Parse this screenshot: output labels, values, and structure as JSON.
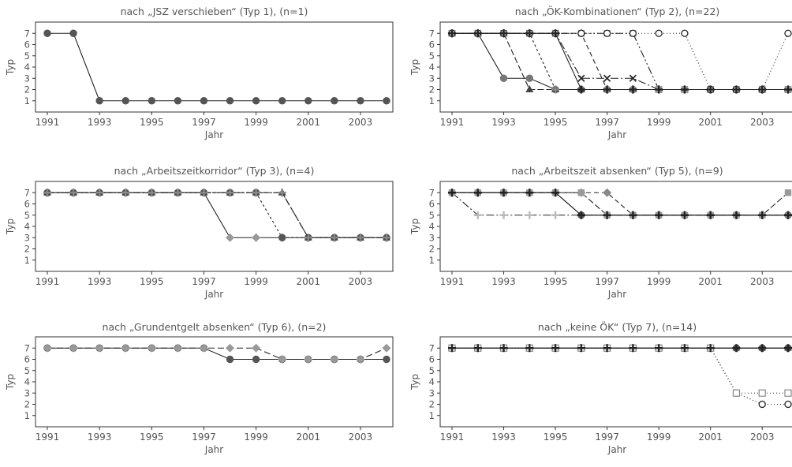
{
  "chart_data": [
    {
      "type": "line",
      "title": "nach „JSZ verschieben“ (Typ 1), (n=1)",
      "xlabel": "Jahr",
      "ylabel": "Typ",
      "x": [
        1991,
        1992,
        1993,
        1994,
        1995,
        1996,
        1997,
        1998,
        1999,
        2000,
        2001,
        2002,
        2003,
        2004
      ],
      "xticks": [
        "1991",
        "1993",
        "1995",
        "1997",
        "1999",
        "2001",
        "2003"
      ],
      "yticks": [
        "1",
        "2",
        "3",
        "4",
        "5",
        "6",
        "7"
      ],
      "ylim": [
        0,
        8
      ],
      "grid": false,
      "series": [
        {
          "marker": "circle",
          "color": "#555555",
          "dash": "",
          "values": [
            7,
            7,
            1,
            1,
            1,
            1,
            1,
            1,
            1,
            1,
            1,
            1,
            1,
            1
          ]
        }
      ]
    },
    {
      "type": "line",
      "title": "nach „ÖK-Kombinationen“ (Typ 2), (n=22)",
      "xlabel": "Jahr",
      "ylabel": "Typ",
      "x": [
        1991,
        1992,
        1993,
        1994,
        1995,
        1996,
        1997,
        1998,
        1999,
        2000,
        2001,
        2002,
        2003,
        2004
      ],
      "xticks": [
        "1991",
        "1993",
        "1995",
        "1997",
        "1999",
        "2001",
        "2003"
      ],
      "yticks": [
        "1",
        "2",
        "3",
        "4",
        "5",
        "6",
        "7"
      ],
      "ylim": [
        0,
        8
      ],
      "grid": false,
      "series": [
        {
          "marker": "circle",
          "color": "#777777",
          "dash": "",
          "values": [
            7,
            7,
            3,
            3,
            2,
            2,
            2,
            2,
            2,
            2,
            2,
            2,
            2,
            2
          ]
        },
        {
          "marker": "triangle",
          "color": "#444444",
          "dash": "8 3",
          "values": [
            7,
            7,
            7,
            2,
            2,
            2,
            2,
            2,
            2,
            2,
            2,
            2,
            2,
            2
          ]
        },
        {
          "marker": "plus",
          "color": "#888888",
          "dash": "3 3",
          "values": [
            7,
            7,
            7,
            7,
            2,
            2,
            2,
            2,
            2,
            2,
            2,
            2,
            2,
            2
          ]
        },
        {
          "marker": "cross",
          "color": "#222222",
          "dash": "10 3 2 3",
          "values": [
            7,
            7,
            7,
            7,
            7,
            3,
            3,
            3,
            2,
            2,
            2,
            2,
            2,
            2
          ]
        },
        {
          "marker": "diamond",
          "color": "#888888",
          "dash": "6 4",
          "values": [
            7,
            7,
            7,
            7,
            7,
            7,
            2,
            2,
            2,
            2,
            2,
            2,
            2,
            2
          ]
        },
        {
          "marker": "square",
          "color": "#999999",
          "dash": "10 3 2 3 2 3",
          "values": [
            7,
            7,
            7,
            7,
            7,
            7,
            7,
            7,
            2,
            2,
            2,
            2,
            2,
            2
          ]
        },
        {
          "marker": "opencircle",
          "color": "#222222",
          "dash": "1 3",
          "values": [
            7,
            7,
            7,
            7,
            7,
            7,
            7,
            7,
            7,
            7,
            2,
            2,
            2,
            7
          ]
        },
        {
          "marker": "plus",
          "color": "#222222",
          "dash": "",
          "values": [
            7,
            7,
            7,
            7,
            7,
            2,
            2,
            2,
            2,
            2,
            2,
            2,
            2,
            2
          ]
        }
      ]
    },
    {
      "type": "line",
      "title": "nach „Arbeitszeitkorridor“ (Typ 3), (n=4)",
      "xlabel": "Jahr",
      "ylabel": "Typ",
      "x": [
        1991,
        1992,
        1993,
        1994,
        1995,
        1996,
        1997,
        1998,
        1999,
        2000,
        2001,
        2002,
        2003,
        2004
      ],
      "xticks": [
        "1991",
        "1993",
        "1995",
        "1997",
        "1999",
        "2001",
        "2003"
      ],
      "yticks": [
        "1",
        "2",
        "3",
        "4",
        "5",
        "6",
        "7"
      ],
      "ylim": [
        0,
        8
      ],
      "grid": false,
      "series": [
        {
          "marker": "diamond",
          "color": "#999999",
          "dash": "",
          "values": [
            7,
            7,
            7,
            7,
            7,
            7,
            7,
            3,
            3,
            3,
            3,
            3,
            3,
            3
          ]
        },
        {
          "marker": "circle",
          "color": "#555555",
          "dash": "3 3",
          "values": [
            7,
            7,
            7,
            7,
            7,
            7,
            7,
            7,
            7,
            3,
            3,
            3,
            3,
            3
          ]
        },
        {
          "marker": "triangle",
          "color": "#444444",
          "dash": "8 3",
          "values": [
            7,
            7,
            7,
            7,
            7,
            7,
            7,
            7,
            7,
            7,
            3,
            3,
            3,
            3
          ]
        },
        {
          "marker": "plus",
          "color": "#888888",
          "dash": "10 3 2 3",
          "values": [
            7,
            7,
            7,
            7,
            7,
            7,
            7,
            7,
            7,
            7,
            3,
            3,
            3,
            3
          ]
        }
      ]
    },
    {
      "type": "line",
      "title": "nach „Arbeitszeit absenken“ (Typ 5), (n=9)",
      "xlabel": "Jahr",
      "ylabel": "Typ",
      "x": [
        1991,
        1992,
        1993,
        1994,
        1995,
        1996,
        1997,
        1998,
        1999,
        2000,
        2001,
        2002,
        2003,
        2004
      ],
      "xticks": [
        "1991",
        "1993",
        "1995",
        "1997",
        "1999",
        "2001",
        "2003"
      ],
      "yticks": [
        "1",
        "2",
        "3",
        "4",
        "5",
        "6",
        "7"
      ],
      "ylim": [
        0,
        8
      ],
      "grid": false,
      "series": [
        {
          "marker": "circle",
          "color": "#555555",
          "dash": "",
          "values": [
            7,
            7,
            7,
            7,
            7,
            5,
            5,
            5,
            5,
            5,
            5,
            5,
            5,
            5
          ]
        },
        {
          "marker": "plus",
          "color": "#bbbbbb",
          "dash": "10 3 2 3",
          "values": [
            7,
            5,
            5,
            5,
            5,
            5,
            5,
            5,
            5,
            5,
            5,
            5,
            5,
            5
          ]
        },
        {
          "marker": "diamond",
          "color": "#888888",
          "dash": "6 4",
          "values": [
            7,
            7,
            7,
            7,
            7,
            7,
            7,
            5,
            5,
            5,
            5,
            5,
            5,
            5
          ]
        },
        {
          "marker": "square",
          "color": "#999999",
          "dash": "8 3",
          "values": [
            7,
            7,
            7,
            7,
            7,
            7,
            5,
            5,
            5,
            5,
            5,
            5,
            5,
            7
          ]
        },
        {
          "marker": "plus",
          "color": "#222222",
          "dash": "",
          "values": [
            7,
            7,
            7,
            7,
            7,
            5,
            5,
            5,
            5,
            5,
            5,
            5,
            5,
            5
          ]
        }
      ]
    },
    {
      "type": "line",
      "title": "nach „Grundentgelt absenken“ (Typ 6), (n=2)",
      "xlabel": "Jahr",
      "ylabel": "Typ",
      "x": [
        1991,
        1992,
        1993,
        1994,
        1995,
        1996,
        1997,
        1998,
        1999,
        2000,
        2001,
        2002,
        2003,
        2004
      ],
      "xticks": [
        "1991",
        "1993",
        "1995",
        "1997",
        "1999",
        "2001",
        "2003"
      ],
      "yticks": [
        "1",
        "2",
        "3",
        "4",
        "5",
        "6",
        "7"
      ],
      "ylim": [
        0,
        8
      ],
      "grid": false,
      "series": [
        {
          "marker": "circle",
          "color": "#555555",
          "dash": "",
          "values": [
            7,
            7,
            7,
            7,
            7,
            7,
            7,
            6,
            6,
            6,
            6,
            6,
            6,
            6
          ]
        },
        {
          "marker": "diamond",
          "color": "#999999",
          "dash": "8 4",
          "values": [
            7,
            7,
            7,
            7,
            7,
            7,
            7,
            7,
            7,
            6,
            6,
            6,
            6,
            7
          ]
        }
      ]
    },
    {
      "type": "line",
      "title": "nach „keine ÖK“ (Typ 7), (n=14)",
      "xlabel": "Jahr",
      "ylabel": "Typ",
      "x": [
        1991,
        1992,
        1993,
        1994,
        1995,
        1996,
        1997,
        1998,
        1999,
        2000,
        2001,
        2002,
        2003,
        2004
      ],
      "xticks": [
        "1991",
        "1993",
        "1995",
        "1997",
        "1999",
        "2001",
        "2003"
      ],
      "yticks": [
        "1",
        "2",
        "3",
        "4",
        "5",
        "6",
        "7"
      ],
      "ylim": [
        0,
        8
      ],
      "grid": false,
      "series": [
        {
          "marker": "triangle",
          "color": "#999999",
          "dash": "",
          "values": [
            7,
            7,
            7,
            7,
            7,
            7,
            7,
            7,
            7,
            7,
            7,
            7,
            7,
            7
          ]
        },
        {
          "marker": "circle",
          "color": "#555555",
          "dash": "",
          "values": [
            7,
            7,
            7,
            7,
            7,
            7,
            7,
            7,
            7,
            7,
            7,
            7,
            7,
            7
          ]
        },
        {
          "marker": "opencircle",
          "color": "#222222",
          "dash": "1 3",
          "values": [
            7,
            7,
            7,
            7,
            7,
            7,
            7,
            7,
            7,
            7,
            7,
            3,
            2,
            2
          ]
        },
        {
          "marker": "opensquare",
          "color": "#888888",
          "dash": "1 3",
          "values": [
            7,
            7,
            7,
            7,
            7,
            7,
            7,
            7,
            7,
            7,
            7,
            3,
            3,
            3
          ]
        },
        {
          "marker": "plus",
          "color": "#222222",
          "dash": "",
          "values": [
            7,
            7,
            7,
            7,
            7,
            7,
            7,
            7,
            7,
            7,
            7,
            7,
            7,
            7
          ]
        }
      ]
    }
  ]
}
